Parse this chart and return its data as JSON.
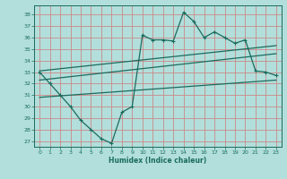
{
  "xlabel": "Humidex (Indice chaleur)",
  "bg_color": "#b2dfdb",
  "grid_color": "#cc8888",
  "line_color": "#1a6b5e",
  "xlim": [
    -0.5,
    23.5
  ],
  "ylim": [
    26.5,
    38.8
  ],
  "yticks": [
    27,
    28,
    29,
    30,
    31,
    32,
    33,
    34,
    35,
    36,
    37,
    38
  ],
  "xticks": [
    0,
    1,
    2,
    3,
    4,
    5,
    6,
    7,
    8,
    9,
    10,
    11,
    12,
    13,
    14,
    15,
    16,
    17,
    18,
    19,
    20,
    21,
    22,
    23
  ],
  "main_line_x": [
    0,
    1,
    2,
    3,
    4,
    5,
    6,
    7,
    8,
    9,
    10,
    11,
    12,
    13,
    14,
    15,
    16,
    17,
    18,
    19,
    20,
    21,
    22,
    23
  ],
  "main_line_y": [
    33.0,
    32.0,
    31.0,
    30.0,
    28.8,
    28.0,
    27.2,
    26.8,
    29.5,
    30.0,
    36.2,
    35.8,
    35.8,
    35.7,
    38.2,
    37.4,
    36.0,
    36.5,
    36.0,
    35.5,
    35.8,
    33.1,
    33.0,
    32.7
  ],
  "upper_line_x": [
    0,
    23
  ],
  "upper_line_y": [
    33.1,
    35.3
  ],
  "middle_line_x": [
    0,
    23
  ],
  "middle_line_y": [
    32.3,
    34.6
  ],
  "lower_line_x": [
    0,
    23
  ],
  "lower_line_y": [
    30.8,
    32.3
  ]
}
